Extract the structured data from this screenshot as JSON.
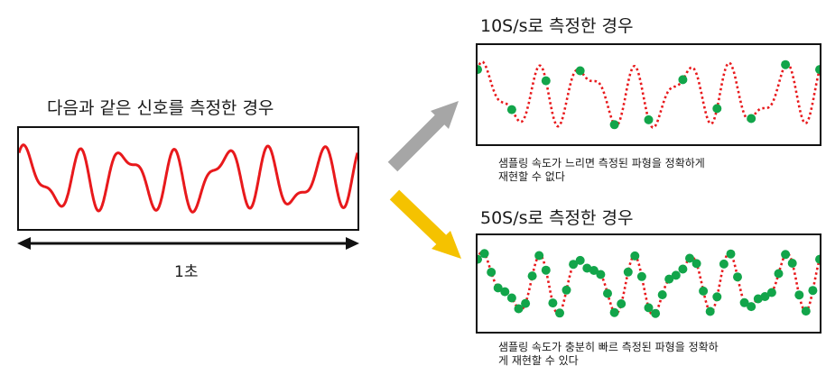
{
  "main": {
    "title": "다음과 같은 신호를 측정한 경우",
    "duration_label": "1초"
  },
  "low_rate": {
    "title": "10S/s로 측정한 경우",
    "caption_line1": "샘플링 속도가 느리면 측정된 파형을 정확하게",
    "caption_line2": "재현할 수 없다",
    "samples_per_second": 10
  },
  "high_rate": {
    "title": "50S/s로 측정한 경우",
    "caption_line1": "샘플링 속도가 충분히 빠르 측정된 파형을 정확하",
    "caption_line2": "게 재현할 수 있다",
    "samples_per_second": 50
  },
  "colors": {
    "signal": "#e8191c",
    "sample_dot": "#12a54a",
    "arrow_up": "#a6a6a6",
    "arrow_down": "#f5c200",
    "frame": "#111111"
  }
}
